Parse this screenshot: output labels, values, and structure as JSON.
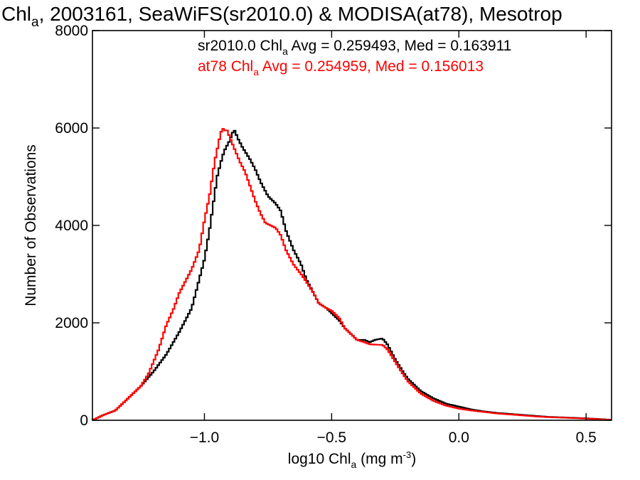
{
  "chart_data": {
    "type": "line",
    "title": {
      "pre": "Chl",
      "sub": "a",
      "post": ", 2003161, SeaWiFS(sr2010.0) & MODISA(at78), Mesotrop"
    },
    "xlabel": {
      "pre": "log10 Chl",
      "sub": "a",
      "post": " (mg m",
      "sup": "-3",
      "end": ")"
    },
    "ylabel": "Number of Observations",
    "xlim": [
      -1.44,
      0.6
    ],
    "ylim": [
      0,
      8000
    ],
    "xticks": [
      -1.0,
      -0.5,
      0.0,
      0.5
    ],
    "xtick_labels": [
      "−1.0",
      "−0.5",
      "0.0",
      "0.5"
    ],
    "yticks": [
      0,
      2000,
      4000,
      6000,
      8000
    ],
    "ytick_labels": [
      "0",
      "2000",
      "4000",
      "6000",
      "8000"
    ],
    "annotations": [
      {
        "pre": "sr2010.0 Chl",
        "sub": "a",
        "post": " Avg = 0.259493, Med = 0.163911",
        "color": "#000000"
      },
      {
        "pre": "at78 Chl",
        "sub": "a",
        "post": " Avg = 0.254959, Med = 0.156013",
        "color": "#ff0000"
      }
    ],
    "series": [
      {
        "color": "#000000",
        "points": [
          [
            -1.44,
            0
          ],
          [
            -1.4,
            100
          ],
          [
            -1.35,
            200
          ],
          [
            -1.3,
            450
          ],
          [
            -1.25,
            700
          ],
          [
            -1.2,
            1000
          ],
          [
            -1.15,
            1350
          ],
          [
            -1.1,
            1800
          ],
          [
            -1.05,
            2300
          ],
          [
            -1.0,
            3300
          ],
          [
            -0.98,
            3900
          ],
          [
            -0.95,
            5000
          ],
          [
            -0.93,
            5400
          ],
          [
            -0.92,
            5550
          ],
          [
            -0.9,
            5750
          ],
          [
            -0.89,
            5900
          ],
          [
            -0.88,
            5950
          ],
          [
            -0.87,
            5800
          ],
          [
            -0.85,
            5600
          ],
          [
            -0.82,
            5350
          ],
          [
            -0.8,
            5150
          ],
          [
            -0.78,
            4900
          ],
          [
            -0.75,
            4600
          ],
          [
            -0.72,
            4450
          ],
          [
            -0.7,
            4300
          ],
          [
            -0.68,
            3900
          ],
          [
            -0.65,
            3500
          ],
          [
            -0.62,
            3200
          ],
          [
            -0.6,
            2900
          ],
          [
            -0.57,
            2600
          ],
          [
            -0.55,
            2400
          ],
          [
            -0.52,
            2300
          ],
          [
            -0.5,
            2200
          ],
          [
            -0.47,
            2050
          ],
          [
            -0.45,
            1900
          ],
          [
            -0.42,
            1750
          ],
          [
            -0.4,
            1650
          ],
          [
            -0.37,
            1650
          ],
          [
            -0.35,
            1600
          ],
          [
            -0.33,
            1650
          ],
          [
            -0.3,
            1680
          ],
          [
            -0.28,
            1550
          ],
          [
            -0.25,
            1250
          ],
          [
            -0.22,
            1000
          ],
          [
            -0.2,
            850
          ],
          [
            -0.15,
            600
          ],
          [
            -0.1,
            450
          ],
          [
            -0.05,
            340
          ],
          [
            0.0,
            280
          ],
          [
            0.05,
            220
          ],
          [
            0.1,
            180
          ],
          [
            0.15,
            150
          ],
          [
            0.2,
            130
          ],
          [
            0.25,
            110
          ],
          [
            0.3,
            90
          ],
          [
            0.35,
            70
          ],
          [
            0.4,
            60
          ],
          [
            0.45,
            50
          ],
          [
            0.5,
            40
          ],
          [
            0.55,
            25
          ],
          [
            0.6,
            10
          ]
        ]
      },
      {
        "color": "#ff0000",
        "points": [
          [
            -1.44,
            0
          ],
          [
            -1.4,
            100
          ],
          [
            -1.35,
            200
          ],
          [
            -1.3,
            450
          ],
          [
            -1.25,
            700
          ],
          [
            -1.22,
            950
          ],
          [
            -1.18,
            1450
          ],
          [
            -1.15,
            1950
          ],
          [
            -1.12,
            2300
          ],
          [
            -1.1,
            2600
          ],
          [
            -1.05,
            3100
          ],
          [
            -1.02,
            3500
          ],
          [
            -1.0,
            4100
          ],
          [
            -0.98,
            4600
          ],
          [
            -0.96,
            5300
          ],
          [
            -0.94,
            5800
          ],
          [
            -0.93,
            6000
          ],
          [
            -0.92,
            5950
          ],
          [
            -0.91,
            5950
          ],
          [
            -0.9,
            5800
          ],
          [
            -0.88,
            5550
          ],
          [
            -0.86,
            5300
          ],
          [
            -0.84,
            5100
          ],
          [
            -0.82,
            4800
          ],
          [
            -0.8,
            4500
          ],
          [
            -0.78,
            4250
          ],
          [
            -0.76,
            4050
          ],
          [
            -0.74,
            4000
          ],
          [
            -0.72,
            3950
          ],
          [
            -0.7,
            3800
          ],
          [
            -0.68,
            3500
          ],
          [
            -0.65,
            3200
          ],
          [
            -0.62,
            3000
          ],
          [
            -0.6,
            2850
          ],
          [
            -0.57,
            2600
          ],
          [
            -0.55,
            2400
          ],
          [
            -0.52,
            2300
          ],
          [
            -0.5,
            2250
          ],
          [
            -0.47,
            2100
          ],
          [
            -0.45,
            1900
          ],
          [
            -0.42,
            1750
          ],
          [
            -0.4,
            1650
          ],
          [
            -0.37,
            1600
          ],
          [
            -0.35,
            1560
          ],
          [
            -0.32,
            1550
          ],
          [
            -0.3,
            1550
          ],
          [
            -0.28,
            1450
          ],
          [
            -0.25,
            1200
          ],
          [
            -0.22,
            950
          ],
          [
            -0.2,
            800
          ],
          [
            -0.15,
            550
          ],
          [
            -0.1,
            400
          ],
          [
            -0.05,
            300
          ],
          [
            0.0,
            240
          ],
          [
            0.05,
            200
          ],
          [
            0.1,
            170
          ],
          [
            0.15,
            140
          ],
          [
            0.2,
            120
          ],
          [
            0.25,
            100
          ],
          [
            0.3,
            80
          ],
          [
            0.35,
            65
          ],
          [
            0.4,
            55
          ],
          [
            0.45,
            45
          ],
          [
            0.5,
            35
          ],
          [
            0.55,
            20
          ],
          [
            0.6,
            8
          ]
        ]
      }
    ]
  }
}
